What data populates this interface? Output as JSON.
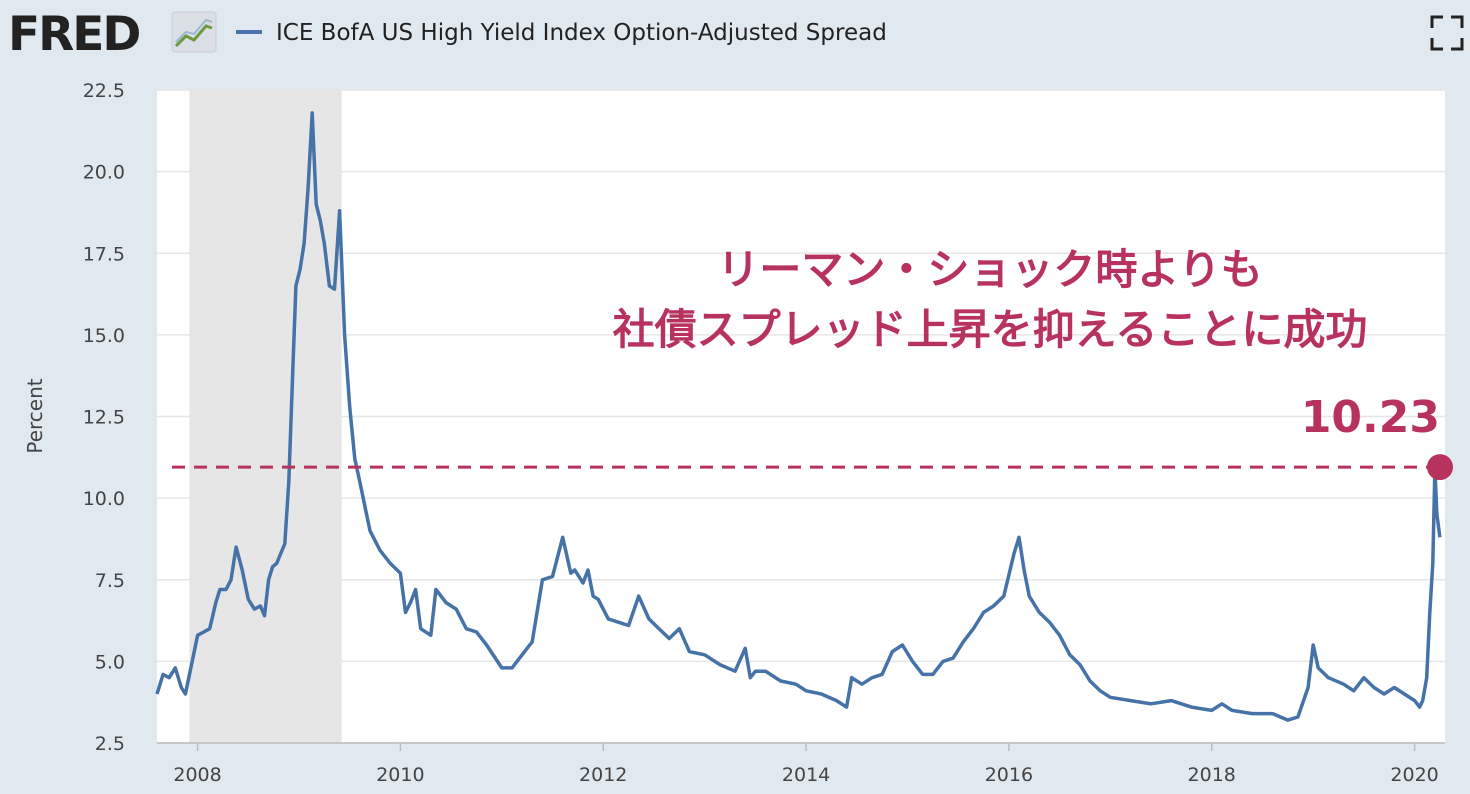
{
  "header": {
    "brand": "FRED",
    "legend_label": "ICE BofA US High Yield Index Option-Adjusted Spread",
    "expand_icon": "fullscreen-icon"
  },
  "annotation": {
    "line1": "リーマン・ショック時よりも",
    "line2": "社債スプレッド上昇を抑えることに成功",
    "value_label": "10.23",
    "reference_value": 10.95
  },
  "colors": {
    "background": "#e1e9f0",
    "plot_background": "#ffffff",
    "series": "#4572a7",
    "recession": "#e6e6e6",
    "annotation": "#b8325e",
    "grid": "#e6e6e6"
  },
  "chart_data": {
    "type": "line",
    "title": "",
    "xlabel": "",
    "ylabel": "Percent",
    "ylim": [
      2.5,
      22.5
    ],
    "xlim": [
      2007.6,
      2020.3
    ],
    "yticks": [
      "2.5",
      "5.0",
      "7.5",
      "10.0",
      "12.5",
      "15.0",
      "17.5",
      "20.0",
      "22.5"
    ],
    "xticks": [
      "2008",
      "2010",
      "2012",
      "2014",
      "2016",
      "2018",
      "2020"
    ],
    "grid": true,
    "recession": [
      2007.92,
      2009.42
    ],
    "series": [
      {
        "name": "ICE BofA US High Yield Index Option-Adjusted Spread",
        "x": [
          2007.6,
          2007.66,
          2007.72,
          2007.78,
          2007.84,
          2007.88,
          2007.92,
          2008.0,
          2008.06,
          2008.12,
          2008.18,
          2008.22,
          2008.28,
          2008.33,
          2008.38,
          2008.44,
          2008.5,
          2008.56,
          2008.62,
          2008.66,
          2008.7,
          2008.74,
          2008.78,
          2008.82,
          2008.86,
          2008.9,
          2008.94,
          2008.97,
          2009.01,
          2009.05,
          2009.09,
          2009.13,
          2009.17,
          2009.21,
          2009.25,
          2009.3,
          2009.35,
          2009.4,
          2009.45,
          2009.5,
          2009.55,
          2009.6,
          2009.7,
          2009.8,
          2009.9,
          2010.0,
          2010.05,
          2010.1,
          2010.15,
          2010.2,
          2010.3,
          2010.35,
          2010.45,
          2010.55,
          2010.65,
          2010.75,
          2010.85,
          2011.0,
          2011.1,
          2011.2,
          2011.3,
          2011.4,
          2011.5,
          2011.6,
          2011.68,
          2011.72,
          2011.76,
          2011.8,
          2011.85,
          2011.9,
          2011.95,
          2012.05,
          2012.15,
          2012.25,
          2012.35,
          2012.45,
          2012.55,
          2012.65,
          2012.75,
          2012.85,
          2013.0,
          2013.15,
          2013.3,
          2013.4,
          2013.45,
          2013.5,
          2013.6,
          2013.75,
          2013.9,
          2014.0,
          2014.15,
          2014.3,
          2014.4,
          2014.45,
          2014.55,
          2014.65,
          2014.75,
          2014.85,
          2014.95,
          2015.05,
          2015.15,
          2015.25,
          2015.35,
          2015.45,
          2015.55,
          2015.65,
          2015.75,
          2015.85,
          2015.95,
          2016.05,
          2016.1,
          2016.15,
          2016.2,
          2016.3,
          2016.4,
          2016.5,
          2016.6,
          2016.7,
          2016.8,
          2016.9,
          2017.0,
          2017.2,
          2017.4,
          2017.6,
          2017.8,
          2018.0,
          2018.1,
          2018.2,
          2018.4,
          2018.6,
          2018.75,
          2018.85,
          2018.95,
          2019.0,
          2019.05,
          2019.15,
          2019.3,
          2019.4,
          2019.5,
          2019.6,
          2019.7,
          2019.8,
          2019.9,
          2020.0,
          2020.05,
          2020.08,
          2020.12,
          2020.15,
          2020.18,
          2020.2,
          2020.22,
          2020.25
        ],
        "values": [
          4.0,
          4.6,
          4.5,
          4.8,
          4.2,
          4.0,
          4.6,
          5.8,
          5.9,
          6.0,
          6.8,
          7.2,
          7.2,
          7.5,
          8.5,
          7.8,
          6.9,
          6.6,
          6.7,
          6.4,
          7.5,
          7.9,
          8.0,
          8.3,
          8.6,
          10.5,
          14.0,
          16.5,
          17.0,
          17.8,
          19.5,
          21.8,
          19.0,
          18.5,
          17.8,
          16.5,
          16.4,
          18.8,
          15.0,
          12.8,
          11.2,
          10.5,
          9.0,
          8.4,
          8.0,
          7.7,
          6.5,
          6.8,
          7.2,
          6.0,
          5.8,
          7.2,
          6.8,
          6.6,
          6.0,
          5.9,
          5.5,
          4.8,
          4.8,
          5.2,
          5.6,
          7.5,
          7.6,
          8.8,
          7.7,
          7.8,
          7.6,
          7.4,
          7.8,
          7.0,
          6.9,
          6.3,
          6.2,
          6.1,
          7.0,
          6.3,
          6.0,
          5.7,
          6.0,
          5.3,
          5.2,
          4.9,
          4.7,
          5.4,
          4.5,
          4.7,
          4.7,
          4.4,
          4.3,
          4.1,
          4.0,
          3.8,
          3.6,
          4.5,
          4.3,
          4.5,
          4.6,
          5.3,
          5.5,
          5.0,
          4.6,
          4.6,
          5.0,
          5.1,
          5.6,
          6.0,
          6.5,
          6.7,
          7.0,
          8.3,
          8.8,
          7.8,
          7.0,
          6.5,
          6.2,
          5.8,
          5.2,
          4.9,
          4.4,
          4.1,
          3.9,
          3.8,
          3.7,
          3.8,
          3.6,
          3.5,
          3.7,
          3.5,
          3.4,
          3.4,
          3.2,
          3.3,
          4.2,
          5.5,
          4.8,
          4.5,
          4.3,
          4.1,
          4.5,
          4.2,
          4.0,
          4.2,
          4.0,
          3.8,
          3.6,
          3.8,
          4.5,
          6.5,
          8.0,
          10.9,
          9.5,
          8.8
        ]
      }
    ]
  }
}
